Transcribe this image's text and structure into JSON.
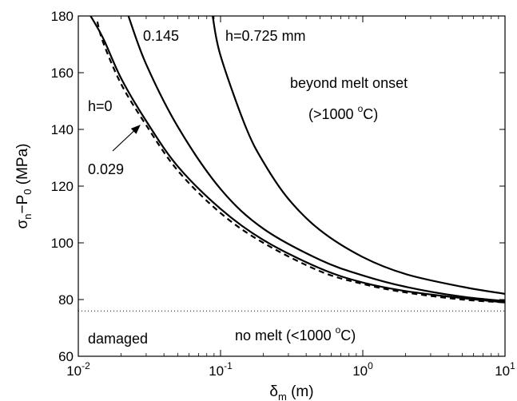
{
  "chart_data": {
    "type": "line",
    "xscale": "log",
    "xlim": [
      0.01,
      10
    ],
    "ylim": [
      60,
      180
    ],
    "grid": false,
    "legend": "none",
    "x_ticks": [
      {
        "value": 0.01,
        "base": "10",
        "exp": "-2"
      },
      {
        "value": 0.1,
        "base": "10",
        "exp": "-1"
      },
      {
        "value": 1,
        "base": "10",
        "exp": "0"
      },
      {
        "value": 10,
        "base": "10",
        "exp": "1"
      }
    ],
    "y_ticks": [
      60,
      80,
      100,
      120,
      140,
      160,
      180
    ],
    "xlabel": {
      "main": "δ",
      "sub": "m",
      "rest": " (m)"
    },
    "ylabel": {
      "p1": "σ",
      "s1": "n",
      "p2": "−P",
      "s2": "0",
      "p3": " (MPa)"
    },
    "series": [
      {
        "h": 0,
        "style": "dashed",
        "x": [
          0.0136,
          0.015,
          0.02,
          0.03,
          0.05,
          0.1,
          0.2,
          0.5,
          1,
          2,
          5,
          10
        ],
        "y": [
          178,
          170.5,
          156,
          141.5,
          125.5,
          110.5,
          100,
          90,
          85.5,
          82.5,
          80,
          79
        ]
      },
      {
        "h": 0.029,
        "style": "solid",
        "x": [
          0.0122,
          0.015,
          0.02,
          0.03,
          0.05,
          0.1,
          0.2,
          0.5,
          1,
          2,
          5,
          10
        ],
        "y": [
          180,
          172,
          158,
          143,
          127,
          112,
          101,
          91,
          86,
          83,
          80.5,
          79
        ]
      },
      {
        "h": 0.145,
        "style": "solid",
        "x": [
          0.0225,
          0.03,
          0.05,
          0.1,
          0.2,
          0.5,
          1,
          2,
          5,
          10
        ],
        "y": [
          180,
          163,
          141,
          119,
          105,
          94,
          88.5,
          84.5,
          81,
          79.5
        ]
      },
      {
        "h": 0.725,
        "style": "solid",
        "x": [
          0.088,
          0.1,
          0.15,
          0.2,
          0.3,
          0.5,
          1,
          2,
          5,
          10
        ],
        "y": [
          180,
          166,
          141,
          128.5,
          115.5,
          104.5,
          95,
          89,
          84.5,
          82
        ]
      }
    ],
    "reference_line": {
      "y": 76,
      "style": "dotted"
    },
    "annotations": {
      "h0": "h=0",
      "h029": "0.029",
      "h145": "0.145",
      "h725": "h=0.725 mm",
      "beyond": "beyond melt onset",
      "beyond_temp": {
        "pre": "(>1000 ",
        "sup": "o",
        "post": "C)"
      },
      "damaged": "damaged",
      "nomelt": {
        "pre": "no melt  (<1000 ",
        "sup": "o",
        "post": "C)"
      }
    }
  }
}
